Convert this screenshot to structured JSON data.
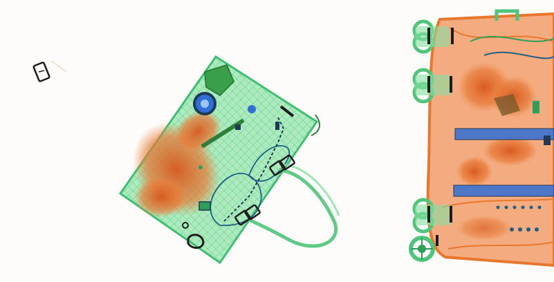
{
  "scene": {
    "type": "xray-baggage-scan",
    "background_color": "#fdfcfa",
    "palette": {
      "organic": "#e86a2a",
      "organic_dark": "#c9541c",
      "inorganic_light": "#86dfa0",
      "inorganic": "#4ec57a",
      "inorganic_dark": "#2e9f58",
      "metal_blue": "#2f6fd6",
      "metal_dark": "#1f3a56",
      "dense_black": "#1c1c1c"
    },
    "objects": [
      "small-metal-clip",
      "handbag",
      "suitcase"
    ]
  }
}
